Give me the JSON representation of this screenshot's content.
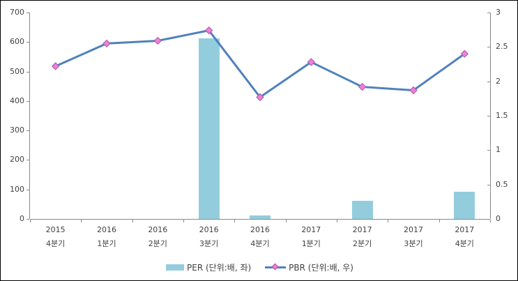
{
  "frame": {
    "background": "#ffffff",
    "border_color": "#000000"
  },
  "chart_data": {
    "type": "bar",
    "title": "",
    "subtitle": "",
    "grid": false,
    "legend_position": "bottom",
    "axis_color": "#898989",
    "text_color": "#3f3f3f",
    "categories": [
      {
        "line1": "2015",
        "line2": "4분기"
      },
      {
        "line1": "2016",
        "line2": "1분기"
      },
      {
        "line1": "2016",
        "line2": "2분기"
      },
      {
        "line1": "2016",
        "line2": "3분기"
      },
      {
        "line1": "2016",
        "line2": "4분기"
      },
      {
        "line1": "2017",
        "line2": "1분기"
      },
      {
        "line1": "2017",
        "line2": "2분기"
      },
      {
        "line1": "2017",
        "line2": "3분기"
      },
      {
        "line1": "2017",
        "line2": "4분기"
      }
    ],
    "series": [
      {
        "name": "PER (단위:배, 좌)",
        "type": "bar",
        "axis": "left",
        "color": "#93CDDD",
        "values": [
          0,
          0,
          0,
          613,
          13,
          0,
          61,
          0,
          92
        ]
      },
      {
        "name": "PBR (단위:배, 우)",
        "type": "line",
        "axis": "right",
        "color": "#4F81BD",
        "marker": {
          "shape": "diamond",
          "fill": "#EE7FD8",
          "stroke": "#A65BA6"
        },
        "values": [
          2.22,
          2.55,
          2.59,
          2.74,
          1.77,
          2.28,
          1.92,
          1.87,
          2.4
        ]
      }
    ],
    "left_axis": {
      "min": 0,
      "max": 700,
      "step": 100,
      "tick_labels": [
        "0",
        "100",
        "200",
        "300",
        "400",
        "500",
        "600",
        "700"
      ]
    },
    "right_axis": {
      "min": 0,
      "max": 3,
      "step": 0.5,
      "tick_labels": [
        "0",
        "0.5",
        "1",
        "1.5",
        "2",
        "2.5",
        "3"
      ]
    }
  }
}
